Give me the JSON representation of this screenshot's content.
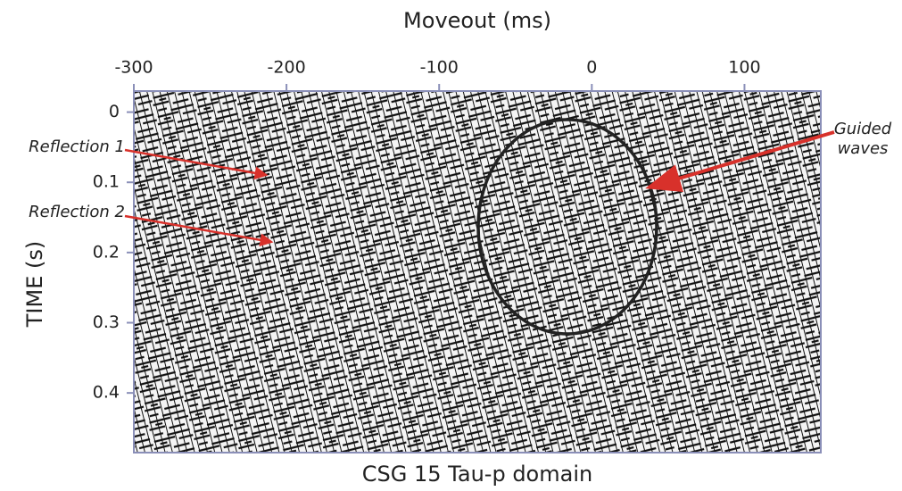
{
  "chart_data": {
    "type": "seismic",
    "title": "CSG 15 Tau-p domain",
    "xlabel": "Moveout (ms)",
    "ylabel": "TIME (s)",
    "xlim": [
      -300,
      150
    ],
    "xticks": [
      -300,
      -200,
      -100,
      0,
      100
    ],
    "ylim": [
      -0.03,
      0.485
    ],
    "yticks": [
      0,
      0.1,
      0.2,
      0.3,
      0.4
    ],
    "y_inverted": true,
    "annotations": [
      "Reflection 1",
      "Reflection 2",
      "Guided waves"
    ]
  }
}
